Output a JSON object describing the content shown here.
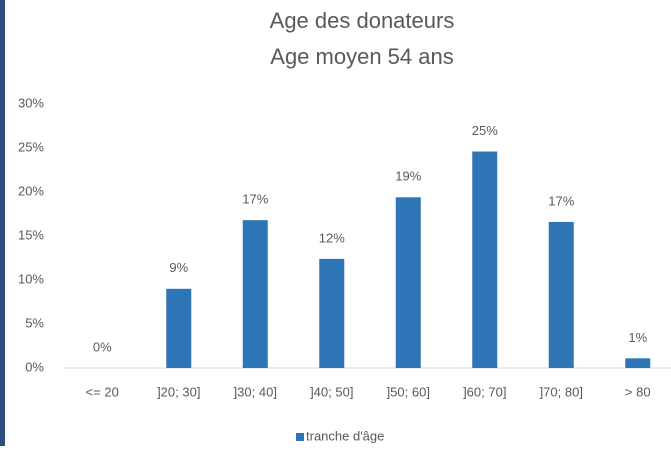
{
  "chart_data": {
    "type": "bar",
    "title": [
      "Age des donateurs",
      "Age moyen   54 ans"
    ],
    "categories": [
      "<= 20",
      "]20; 30]",
      "]30; 40]",
      "]40; 50]",
      "]50; 60]",
      "]60; 70]",
      "]70; 80]",
      "> 80"
    ],
    "series": [
      {
        "name": "tranche d'âge",
        "color": "#2e75b6",
        "values": [
          0,
          9,
          16.8,
          12.4,
          19.4,
          24.6,
          16.6,
          1.1
        ],
        "value_labels": [
          "0%",
          "9%",
          "17%",
          "12%",
          "19%",
          "25%",
          "17%",
          "1%"
        ]
      }
    ],
    "ylim": [
      0,
      30
    ],
    "yticks": [
      {
        "value": 0,
        "label": "0%"
      },
      {
        "value": 5,
        "label": "5%"
      },
      {
        "value": 10,
        "label": "10%"
      },
      {
        "value": 15,
        "label": "15%"
      },
      {
        "value": 20,
        "label": "20%"
      },
      {
        "value": 25,
        "label": "25%"
      },
      {
        "value": 30,
        "label": "30%"
      }
    ],
    "grid": false,
    "legend": "bottom"
  }
}
